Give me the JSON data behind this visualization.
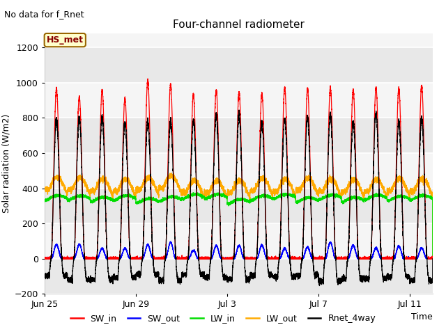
{
  "title": "Four-channel radiometer",
  "top_left_text": "No data for f_Rnet",
  "ylabel": "Solar radiation (W/m2)",
  "xlabel": "Time",
  "ylim": [
    -200,
    1280
  ],
  "yticks": [
    -200,
    0,
    200,
    400,
    600,
    800,
    1000,
    1200
  ],
  "xtick_labels": [
    "Jun 25",
    "Jun 29",
    "Jul 3",
    "Jul 7",
    "Jul 11"
  ],
  "xtick_positions": [
    0,
    4,
    8,
    12,
    16
  ],
  "legend_entries": [
    {
      "label": "SW_in",
      "color": "#ff0000"
    },
    {
      "label": "SW_out",
      "color": "#0000ff"
    },
    {
      "label": "LW_in",
      "color": "#00dd00"
    },
    {
      "label": "LW_out",
      "color": "#ffaa00"
    },
    {
      "label": "Rnet_4way",
      "color": "#000000"
    }
  ],
  "box_label": "HS_met",
  "box_facecolor": "#ffffcc",
  "box_edgecolor": "#996600",
  "bg_color": "#ffffff",
  "plot_bg_color": "#f5f5f5",
  "n_days": 17
}
